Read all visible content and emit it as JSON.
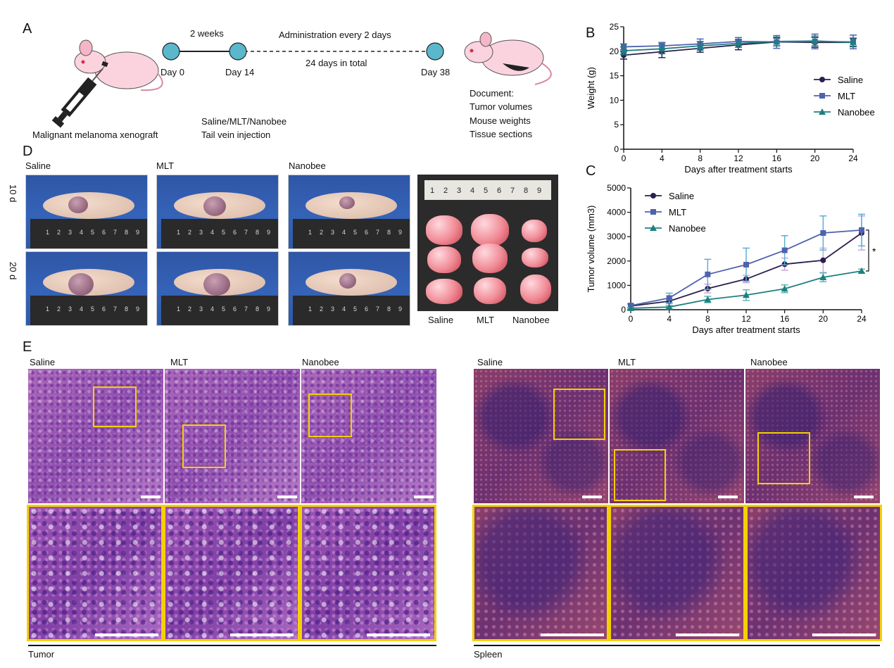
{
  "panels": {
    "a": "A",
    "b": "B",
    "c": "C",
    "d": "D",
    "e": "E"
  },
  "timeline": {
    "span1": "2 weeks",
    "span2": "Administration every 2 days",
    "span3": "24 days in total",
    "day0": "Day 0",
    "day14": "Day 14",
    "day38": "Day 38",
    "model": "Malignant melanoma xenograft",
    "treat1": "Saline/MLT/Nanobee",
    "treat2": "Tail vein injection",
    "doc_title": "Document:",
    "doc1": "Tumor volumes",
    "doc2": "Mouse weights",
    "doc3": "Tissue sections",
    "colors": {
      "node": "#5ab7cc",
      "line": "#222222"
    }
  },
  "photos": {
    "groups": [
      "Saline",
      "MLT",
      "Nanobee"
    ],
    "row_labels": [
      "10 d",
      "20 d"
    ],
    "excised_labels": [
      "Saline",
      "MLT",
      "Nanobee"
    ],
    "ruler_digits": [
      "1",
      "2",
      "3",
      "4",
      "5",
      "6",
      "7",
      "8",
      "9"
    ]
  },
  "histology": {
    "tumor_groups": [
      "Saline",
      "MLT",
      "Nanobee"
    ],
    "spleen_groups": [
      "Saline",
      "MLT",
      "Nanobee"
    ],
    "tumor_caption": "Tumor",
    "spleen_caption": "Spleen",
    "box_color": "#f5d000"
  },
  "chart_data": [
    {
      "type": "line",
      "panel": "B",
      "xlabel": "Days after treatment starts",
      "ylabel": "Weight (g)",
      "x": [
        0,
        4,
        8,
        12,
        16,
        20,
        24
      ],
      "xlim": [
        0,
        24
      ],
      "ylim": [
        0,
        25
      ],
      "xticks": [
        0,
        4,
        8,
        12,
        16,
        20,
        24
      ],
      "yticks": [
        0,
        5,
        10,
        15,
        20,
        25
      ],
      "legend_position": "right",
      "series": [
        {
          "name": "Saline",
          "marker": "circle",
          "color": "#2b1f4f",
          "values": [
            19.2,
            19.9,
            20.6,
            21.3,
            21.9,
            21.8,
            21.8
          ],
          "errors": [
            0.8,
            1.2,
            0.8,
            1.0,
            0.8,
            1.0,
            0.8
          ]
        },
        {
          "name": "MLT",
          "marker": "square",
          "color": "#4f62ad",
          "values": [
            20.9,
            21.1,
            21.5,
            22.0,
            21.9,
            22.0,
            21.9
          ],
          "errors": [
            0.6,
            0.7,
            1.0,
            0.8,
            1.3,
            1.5,
            1.4
          ]
        },
        {
          "name": "Nanobee",
          "marker": "triangle",
          "color": "#1f7f7f",
          "values": [
            20.1,
            20.5,
            21.1,
            21.6,
            22.0,
            22.1,
            21.8
          ],
          "errors": [
            0.8,
            1.0,
            0.9,
            0.8,
            0.9,
            1.0,
            0.9
          ]
        }
      ]
    },
    {
      "type": "line",
      "panel": "C",
      "xlabel": "Days after treatment starts",
      "ylabel": "Tumor volume (mm3)",
      "x": [
        0,
        4,
        8,
        12,
        16,
        20,
        24
      ],
      "xlim": [
        0,
        24
      ],
      "ylim": [
        0,
        5000
      ],
      "xticks": [
        0,
        4,
        8,
        12,
        16,
        20,
        24
      ],
      "yticks": [
        0,
        1000,
        2000,
        3000,
        4000,
        5000
      ],
      "legend_position": "top-left",
      "annotation": "*",
      "series": [
        {
          "name": "Saline",
          "marker": "circle",
          "color": "#2b1f4f",
          "error_color": "#c9a7d8",
          "values": [
            150,
            350,
            870,
            1260,
            1870,
            2030,
            3150
          ],
          "errors": [
            60,
            100,
            180,
            150,
            250,
            500,
            700
          ]
        },
        {
          "name": "MLT",
          "marker": "square",
          "color": "#4f62ad",
          "error_color": "#5ab0d6",
          "values": [
            170,
            480,
            1450,
            1850,
            2440,
            3150,
            3270
          ],
          "errors": [
            80,
            200,
            620,
            680,
            600,
            700,
            650
          ]
        },
        {
          "name": "Nanobee",
          "marker": "triangle",
          "color": "#1f7f7f",
          "error_color": "#5ab7b7",
          "values": [
            60,
            110,
            420,
            600,
            860,
            1330,
            1590
          ],
          "errors": [
            30,
            60,
            130,
            220,
            160,
            180,
            80
          ]
        }
      ]
    }
  ]
}
